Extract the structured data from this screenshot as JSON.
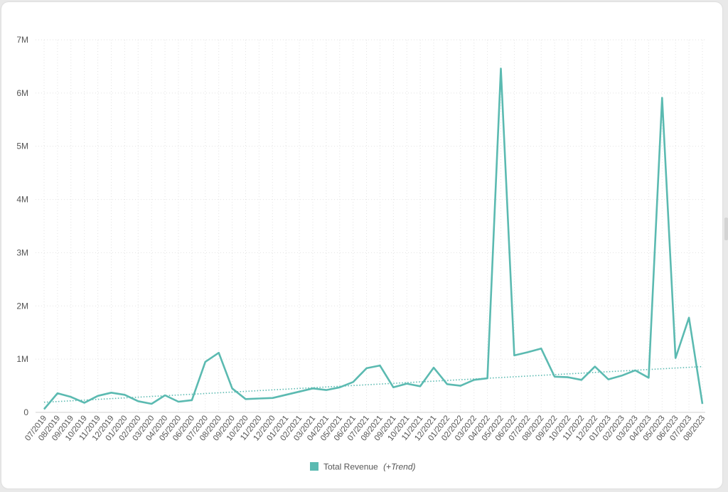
{
  "chart_data": {
    "type": "line",
    "x": [
      "07/2019",
      "08/2019",
      "09/2019",
      "10/2019",
      "11/2019",
      "12/2019",
      "01/2020",
      "02/2020",
      "03/2020",
      "04/2020",
      "05/2020",
      "06/2020",
      "07/2020",
      "08/2020",
      "09/2020",
      "10/2020",
      "11/2020",
      "12/2020",
      "01/2021",
      "02/2021",
      "03/2021",
      "04/2021",
      "05/2021",
      "06/2021",
      "07/2021",
      "08/2021",
      "09/2021",
      "10/2021",
      "11/2021",
      "12/2021",
      "01/2022",
      "02/2022",
      "03/2022",
      "04/2022",
      "05/2022",
      "06/2022",
      "07/2022",
      "08/2022",
      "09/2022",
      "10/2022",
      "11/2022",
      "12/2022",
      "01/2023",
      "02/2023",
      "03/2023",
      "04/2023",
      "05/2023",
      "06/2023",
      "07/2023",
      "08/2023"
    ],
    "series": [
      {
        "name": "Total Revenue",
        "color": "#5bbab1",
        "values": [
          0.06,
          0.36,
          0.29,
          0.18,
          0.31,
          0.37,
          0.33,
          0.21,
          0.16,
          0.32,
          0.2,
          0.23,
          0.95,
          1.12,
          0.45,
          0.25,
          0.26,
          0.27,
          0.33,
          0.39,
          0.45,
          0.42,
          0.47,
          0.57,
          0.83,
          0.88,
          0.47,
          0.54,
          0.49,
          0.84,
          0.53,
          0.5,
          0.61,
          0.64,
          6.46,
          1.07,
          1.13,
          1.2,
          0.67,
          0.66,
          0.61,
          0.86,
          0.62,
          0.69,
          0.79,
          0.65,
          5.91,
          1.02,
          1.78,
          0.16
        ]
      }
    ],
    "trend": {
      "start": 0.19,
      "end": 0.86,
      "style": "dotted"
    },
    "legend": {
      "label": "Total Revenue",
      "suffix": "(+Trend)",
      "position": "bottom"
    },
    "y_ticks": [
      "0",
      "1M",
      "2M",
      "3M",
      "4M",
      "5M",
      "6M",
      "7M"
    ],
    "ylim": [
      0,
      7
    ],
    "grid": true,
    "title": "",
    "xlabel": "",
    "ylabel": ""
  }
}
